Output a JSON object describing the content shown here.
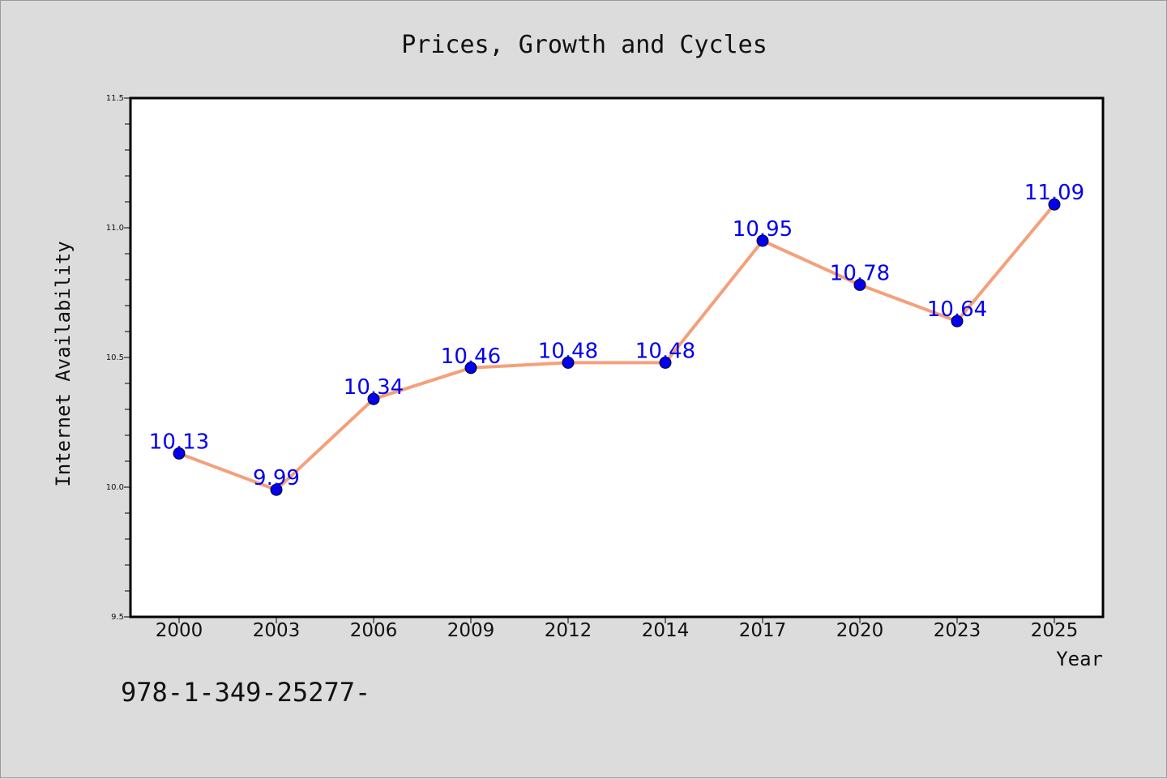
{
  "footer_text": "978-1-349-25277-",
  "colors": {
    "background": "#dcdcdc",
    "plot_background": "#ffffff",
    "line": "#f4a07a",
    "marker": "#0000ee",
    "label": "#0000ee"
  },
  "chart_data": {
    "type": "line",
    "title": "Prices, Growth and Cycles",
    "xlabel": "Year",
    "ylabel": "Internet Availability",
    "categories": [
      "2000",
      "2003",
      "2006",
      "2009",
      "2012",
      "2014",
      "2017",
      "2020",
      "2023",
      "2025"
    ],
    "series": [
      {
        "values": [
          10.13,
          9.99,
          10.34,
          10.46,
          10.48,
          10.48,
          10.95,
          10.78,
          10.64,
          11.09
        ]
      }
    ],
    "data_labels": [
      "10.13",
      "9.99",
      "10.34",
      "10.46",
      "10.48",
      "10.48",
      "10.95",
      "10.78",
      "10.64",
      "11.09"
    ],
    "ylim": [
      9.5,
      11.5
    ],
    "yticks": [
      "9.5",
      "10.0",
      "10.5",
      "11.0",
      "11.5"
    ],
    "ytick_values": [
      9.5,
      10.0,
      10.5,
      11.0,
      11.5
    ],
    "minor_ytick_step": 0.1,
    "grid": false,
    "legend": "none"
  }
}
